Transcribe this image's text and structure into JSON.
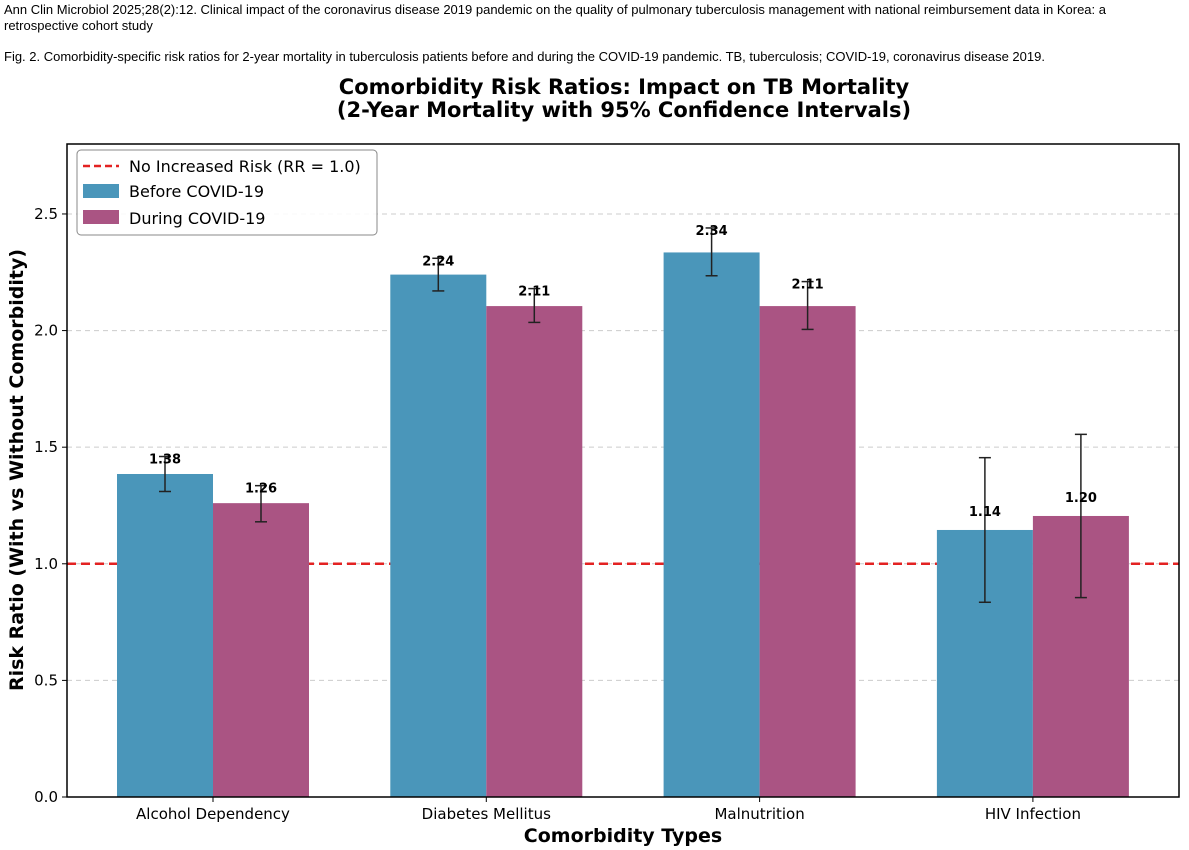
{
  "header": {
    "citation": "Ann Clin Microbiol 2025;28(2):12. Clinical impact of the coronavirus disease 2019 pandemic on the quality of pulmonary tuberculosis management with national reimbursement data in Korea: a retrospective cohort study",
    "caption": "Fig. 2. Comorbidity-specific risk ratios for 2-year mortality in tuberculosis patients before and during the COVID-19 pandemic. TB, tuberculosis; COVID-19, coronavirus disease 2019."
  },
  "chart_data": {
    "type": "bar",
    "title": "Comorbidity Risk Ratios: Impact on TB Mortality",
    "subtitle": "(2-Year Mortality with 95% Confidence Intervals)",
    "xlabel": "Comorbidity Types",
    "ylabel": "Risk Ratio (With vs Without Comorbidity)",
    "ylim": [
      0,
      2.8
    ],
    "yticks": [
      "0.0",
      "0.5",
      "1.0",
      "1.5",
      "2.0",
      "2.5"
    ],
    "grid": "horizontal dashed",
    "legend_position": "top-left",
    "categories": [
      "Alcohol Dependency",
      "Diabetes Mellitus",
      "Malnutrition",
      "HIV Infection"
    ],
    "series": [
      {
        "name": "Before COVID-19",
        "color": "#4a96ba",
        "values": [
          1.385,
          2.24,
          2.335,
          1.145
        ],
        "value_labels": [
          "1.38",
          "2.24",
          "2.34",
          "1.14"
        ],
        "ci_low": [
          1.31,
          2.17,
          2.235,
          0.835
        ],
        "ci_high": [
          1.46,
          2.31,
          2.44,
          1.455
        ]
      },
      {
        "name": "During COVID-19",
        "color": "#aa5483",
        "values": [
          1.26,
          2.105,
          2.105,
          1.205
        ],
        "value_labels": [
          "1.26",
          "2.11",
          "2.11",
          "1.20"
        ],
        "ci_low": [
          1.18,
          2.035,
          2.005,
          0.855
        ],
        "ci_high": [
          1.335,
          2.18,
          2.21,
          1.555
        ]
      }
    ],
    "reference_line": {
      "label": "No Increased Risk (RR = 1.0)",
      "value": 1.0,
      "color": "#e32222"
    }
  }
}
